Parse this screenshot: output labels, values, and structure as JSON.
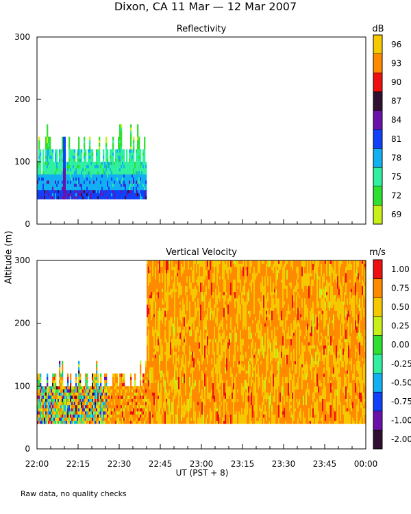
{
  "figure": {
    "title": "Dixon, CA 11 Mar — 12 Mar 2007",
    "ylabel": "Altitude (m)",
    "xlabel": "UT   (PST + 8)",
    "footnote": "Raw data, no quality checks"
  },
  "chart_data": [
    {
      "type": "heatmap",
      "title": "Reflectivity",
      "ylabel": "Altitude (m)",
      "xlabel": "UT (PST + 8)",
      "x_range_minutes": [
        0,
        120
      ],
      "ylim": [
        0,
        300
      ],
      "y_ticks": [
        "0",
        "100",
        "200",
        "300"
      ],
      "x_tick_labels": [],
      "colorbar": {
        "unit": "dB",
        "labels": [
          "96",
          "93",
          "90",
          "87",
          "84",
          "81",
          "78",
          "75",
          "72",
          "69"
        ],
        "colors": [
          "#f5c800",
          "#ff8a00",
          "#ee1010",
          "#301030",
          "#6a12a8",
          "#1040f8",
          "#12b0f0",
          "#30f0a0",
          "#30e030",
          "#c8f018"
        ]
      },
      "data_extent": {
        "x_minutes": [
          0,
          40
        ],
        "altitude_m": [
          40,
          140
        ]
      },
      "description_levels": [
        {
          "altitude_m": [
            40,
            55
          ],
          "dominant_dB": 81
        },
        {
          "altitude_m": [
            55,
            80
          ],
          "dominant_dB": 78
        },
        {
          "altitude_m": [
            80,
            120
          ],
          "dominant_dB": 75
        },
        {
          "altitude_m": [
            120,
            140
          ],
          "dominant_dB": 72
        }
      ]
    },
    {
      "type": "heatmap",
      "title": "Vertical Velocity",
      "ylabel": "Altitude (m)",
      "xlabel": "UT (PST + 8)",
      "x_range_minutes": [
        0,
        120
      ],
      "ylim": [
        0,
        300
      ],
      "y_ticks": [
        "0",
        "100",
        "200",
        "300"
      ],
      "x_tick_labels": [
        "22:00",
        "22:15",
        "22:30",
        "22:45",
        "23:00",
        "23:15",
        "23:30",
        "23:45",
        "00:00"
      ],
      "colorbar": {
        "unit": "m/s",
        "labels": [
          "1.00",
          "0.75",
          "0.50",
          "0.25",
          "0.00",
          "-0.25",
          "-0.50",
          "-0.75",
          "-1.00",
          "-2.00"
        ],
        "colors": [
          "#ee1010",
          "#ff8a00",
          "#f5c800",
          "#c8f018",
          "#30e030",
          "#30f0a0",
          "#12b0f0",
          "#1040f8",
          "#6a12a8",
          "#301030"
        ]
      },
      "data_extent": [
        {
          "x_minutes": [
            0,
            40
          ],
          "altitude_m": [
            40,
            140
          ]
        },
        {
          "x_minutes": [
            40,
            120
          ],
          "altitude_m": [
            40,
            300
          ]
        }
      ],
      "dominant_velocity_m_s": [
        0.5,
        0.75
      ]
    }
  ]
}
